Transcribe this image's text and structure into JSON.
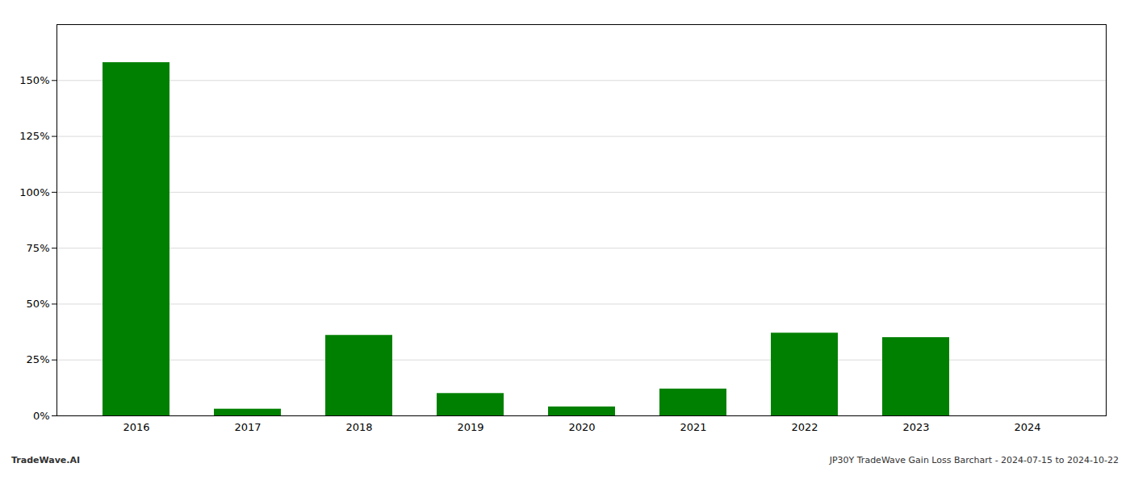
{
  "chart_data": {
    "type": "bar",
    "categories": [
      "2016",
      "2017",
      "2018",
      "2019",
      "2020",
      "2021",
      "2022",
      "2023",
      "2024"
    ],
    "values": [
      1.58,
      0.03,
      0.36,
      0.1,
      0.04,
      0.12,
      0.37,
      0.35,
      0.0
    ],
    "color": "#008000",
    "ylim": [
      0,
      1.75
    ],
    "yticks": [
      {
        "value": 0.0,
        "label": "0%"
      },
      {
        "value": 0.25,
        "label": "25%"
      },
      {
        "value": 0.5,
        "label": "50%"
      },
      {
        "value": 0.75,
        "label": "75%"
      },
      {
        "value": 1.0,
        "label": "100%"
      },
      {
        "value": 1.25,
        "label": "125%"
      },
      {
        "value": 1.5,
        "label": "150%"
      }
    ],
    "grid": true,
    "annotations": [
      "TradeWave.AI",
      "JP30Y TradeWave Gain Loss Barchart - 2024-07-15 to 2024-10-22"
    ]
  }
}
